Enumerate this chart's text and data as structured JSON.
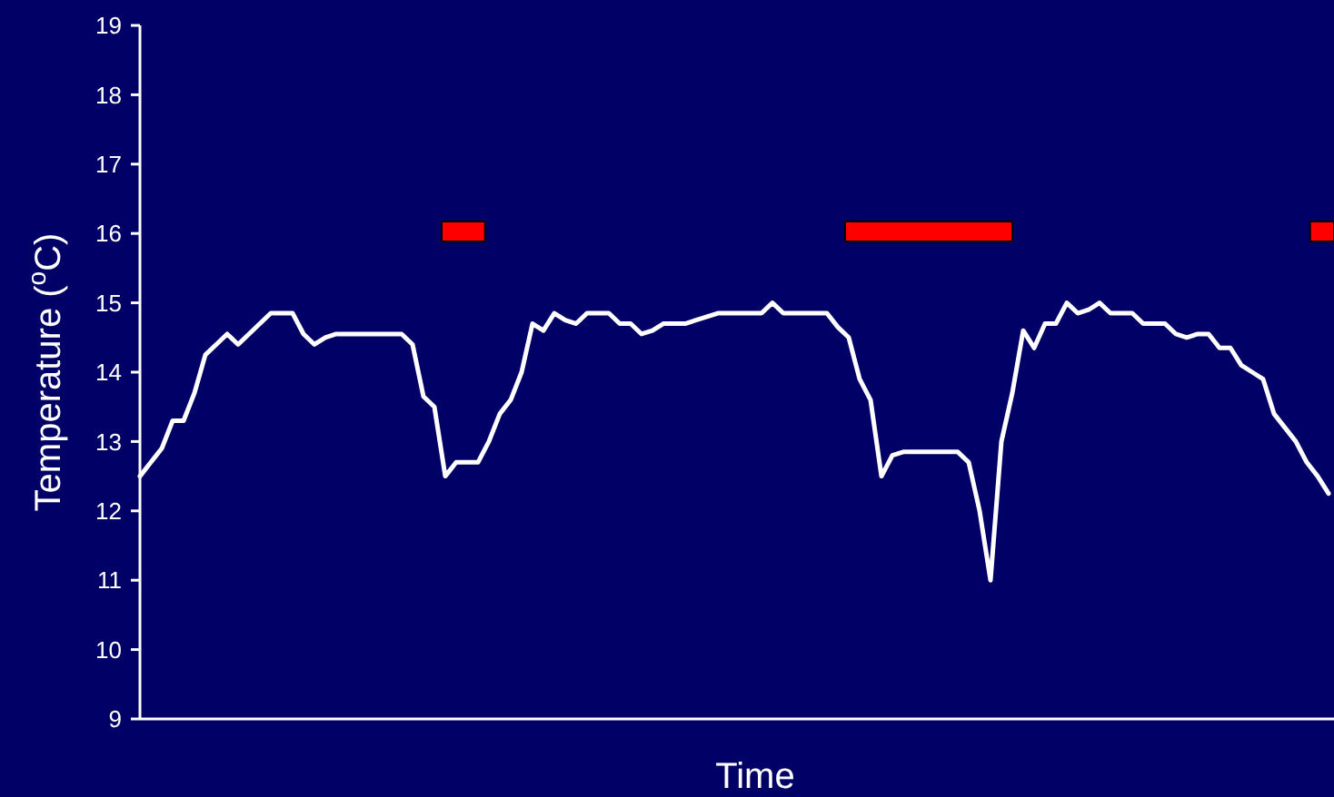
{
  "chart_data": {
    "type": "line",
    "xlabel": "Time",
    "ylabel": "Temperature ($^{o}$C)",
    "ylim": [
      9,
      19
    ],
    "yticks": [
      9,
      10,
      11,
      12,
      13,
      14,
      15,
      16,
      17,
      18,
      19
    ],
    "tick_labels": "y",
    "categories": [
      null,
      null,
      null,
      null,
      null,
      null,
      null,
      null,
      null,
      null,
      null,
      null,
      null,
      null,
      null,
      null,
      null,
      null,
      null,
      null,
      null,
      null,
      null,
      null,
      null,
      null,
      null,
      null,
      null,
      null,
      null,
      null,
      null,
      null,
      null,
      null,
      null,
      null,
      null,
      null,
      null,
      null,
      null,
      null,
      null,
      null,
      null,
      null,
      null,
      null,
      null,
      null,
      null,
      null,
      null,
      null,
      null,
      null,
      null,
      null,
      null,
      null,
      null,
      null,
      null,
      null,
      null,
      null,
      null,
      null,
      null,
      null,
      null,
      null,
      null,
      null,
      null,
      null,
      null,
      null,
      null,
      null,
      null,
      null,
      null,
      null,
      null,
      null,
      null,
      null,
      null,
      null,
      null,
      null,
      null,
      null,
      null,
      null,
      null,
      null,
      null,
      null,
      null,
      null,
      null,
      null,
      null,
      null,
      null,
      null
    ],
    "series": [
      {
        "color": "#ffffff",
        "values": [
          12.5,
          12.7,
          12.9,
          13.3,
          13.3,
          13.7,
          14.25,
          14.4,
          14.55,
          14.4,
          14.55,
          14.7,
          14.85,
          14.85,
          14.85,
          14.55,
          14.4,
          14.5,
          14.55,
          14.55,
          14.55,
          14.55,
          14.55,
          14.55,
          14.55,
          14.4,
          13.65,
          13.5,
          12.5,
          12.7,
          12.7,
          12.7,
          13.0,
          13.4,
          13.6,
          14.0,
          14.7,
          14.6,
          14.85,
          14.75,
          14.7,
          14.85,
          14.85,
          14.85,
          14.7,
          14.7,
          14.55,
          14.6,
          14.7,
          14.7,
          14.7,
          14.75,
          14.8,
          14.85,
          14.85,
          14.85,
          14.85,
          14.85,
          15.0,
          14.85,
          14.85,
          14.85,
          14.85,
          14.85,
          14.65,
          14.5,
          13.9,
          13.6,
          12.5,
          12.8,
          12.85,
          12.85,
          12.85,
          12.85,
          12.85,
          12.85,
          12.7,
          12.0,
          11.0,
          13.0,
          13.7,
          14.6,
          14.35,
          14.7,
          14.7,
          15.0,
          14.85,
          14.9,
          15.0,
          14.85,
          14.85,
          14.85,
          14.7,
          14.7,
          14.7,
          14.55,
          14.5,
          14.55,
          14.55,
          14.35,
          14.35,
          14.1,
          14.0,
          13.9,
          13.4,
          13.2,
          13.0,
          12.7,
          12.5,
          12.25
        ]
      }
    ]
  }
}
